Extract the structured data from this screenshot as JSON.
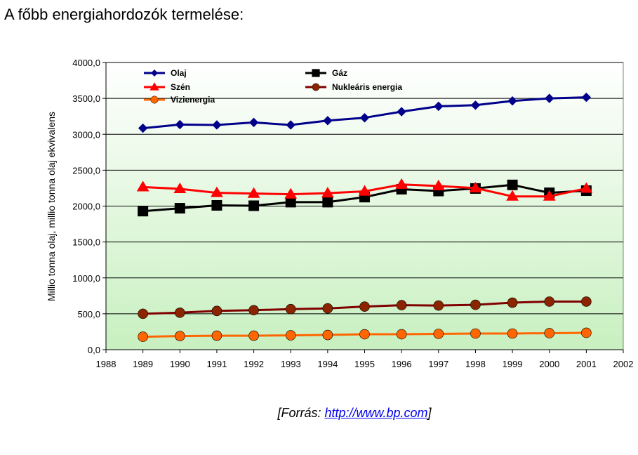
{
  "page": {
    "title": "A főbb energiahordozók termelése:",
    "source_prefix": "[Forrás: ",
    "source_link": "http://www.bp.com",
    "source_suffix": "]"
  },
  "chart_data": {
    "type": "line",
    "ylabel": "Millio tonna olaj, millio tonna olaj ekvivalens",
    "xlabel": "",
    "xlim": [
      1988,
      2002
    ],
    "ylim": [
      0,
      4000
    ],
    "x_ticks": [
      "1988",
      "1989",
      "1990",
      "1991",
      "1992",
      "1993",
      "1994",
      "1995",
      "1996",
      "1997",
      "1998",
      "1999",
      "2000",
      "2001",
      "2002"
    ],
    "y_ticks": [
      "0,0",
      "500,0",
      "1000,0",
      "1500,0",
      "2000,0",
      "2500,0",
      "3000,0",
      "3500,0",
      "4000,0"
    ],
    "grid": "horizontal",
    "legend_position": "top-left inside",
    "x": [
      1989,
      1990,
      1991,
      1992,
      1993,
      1994,
      1995,
      1996,
      1997,
      1998,
      1999,
      2000,
      2001
    ],
    "series": [
      {
        "name": "Olaj",
        "color": "#00008b",
        "marker": "diamond",
        "values": [
          3085,
          3135,
          3130,
          3165,
          3130,
          3190,
          3230,
          3315,
          3390,
          3405,
          3465,
          3500,
          3515
        ]
      },
      {
        "name": "Gáz",
        "color": "#000000",
        "marker": "square",
        "values": [
          1930,
          1970,
          2010,
          2005,
          2055,
          2055,
          2125,
          2235,
          2210,
          2245,
          2295,
          2185,
          2215
        ]
      },
      {
        "name": "Szén",
        "color": "#ff0000",
        "marker": "triangle",
        "values": [
          2265,
          2240,
          2185,
          2175,
          2165,
          2180,
          2205,
          2300,
          2280,
          2250,
          2135,
          2135,
          2245
        ]
      },
      {
        "name": "Nukleáris energia",
        "color": "#800000",
        "marker": "circle",
        "values": [
          500,
          515,
          540,
          550,
          565,
          575,
          600,
          620,
          615,
          625,
          655,
          670,
          670
        ]
      },
      {
        "name": "Vizienergia",
        "color": "#ff6600",
        "marker": "circle",
        "values": [
          180,
          190,
          195,
          195,
          200,
          205,
          215,
          215,
          220,
          225,
          225,
          230,
          235
        ]
      }
    ]
  }
}
